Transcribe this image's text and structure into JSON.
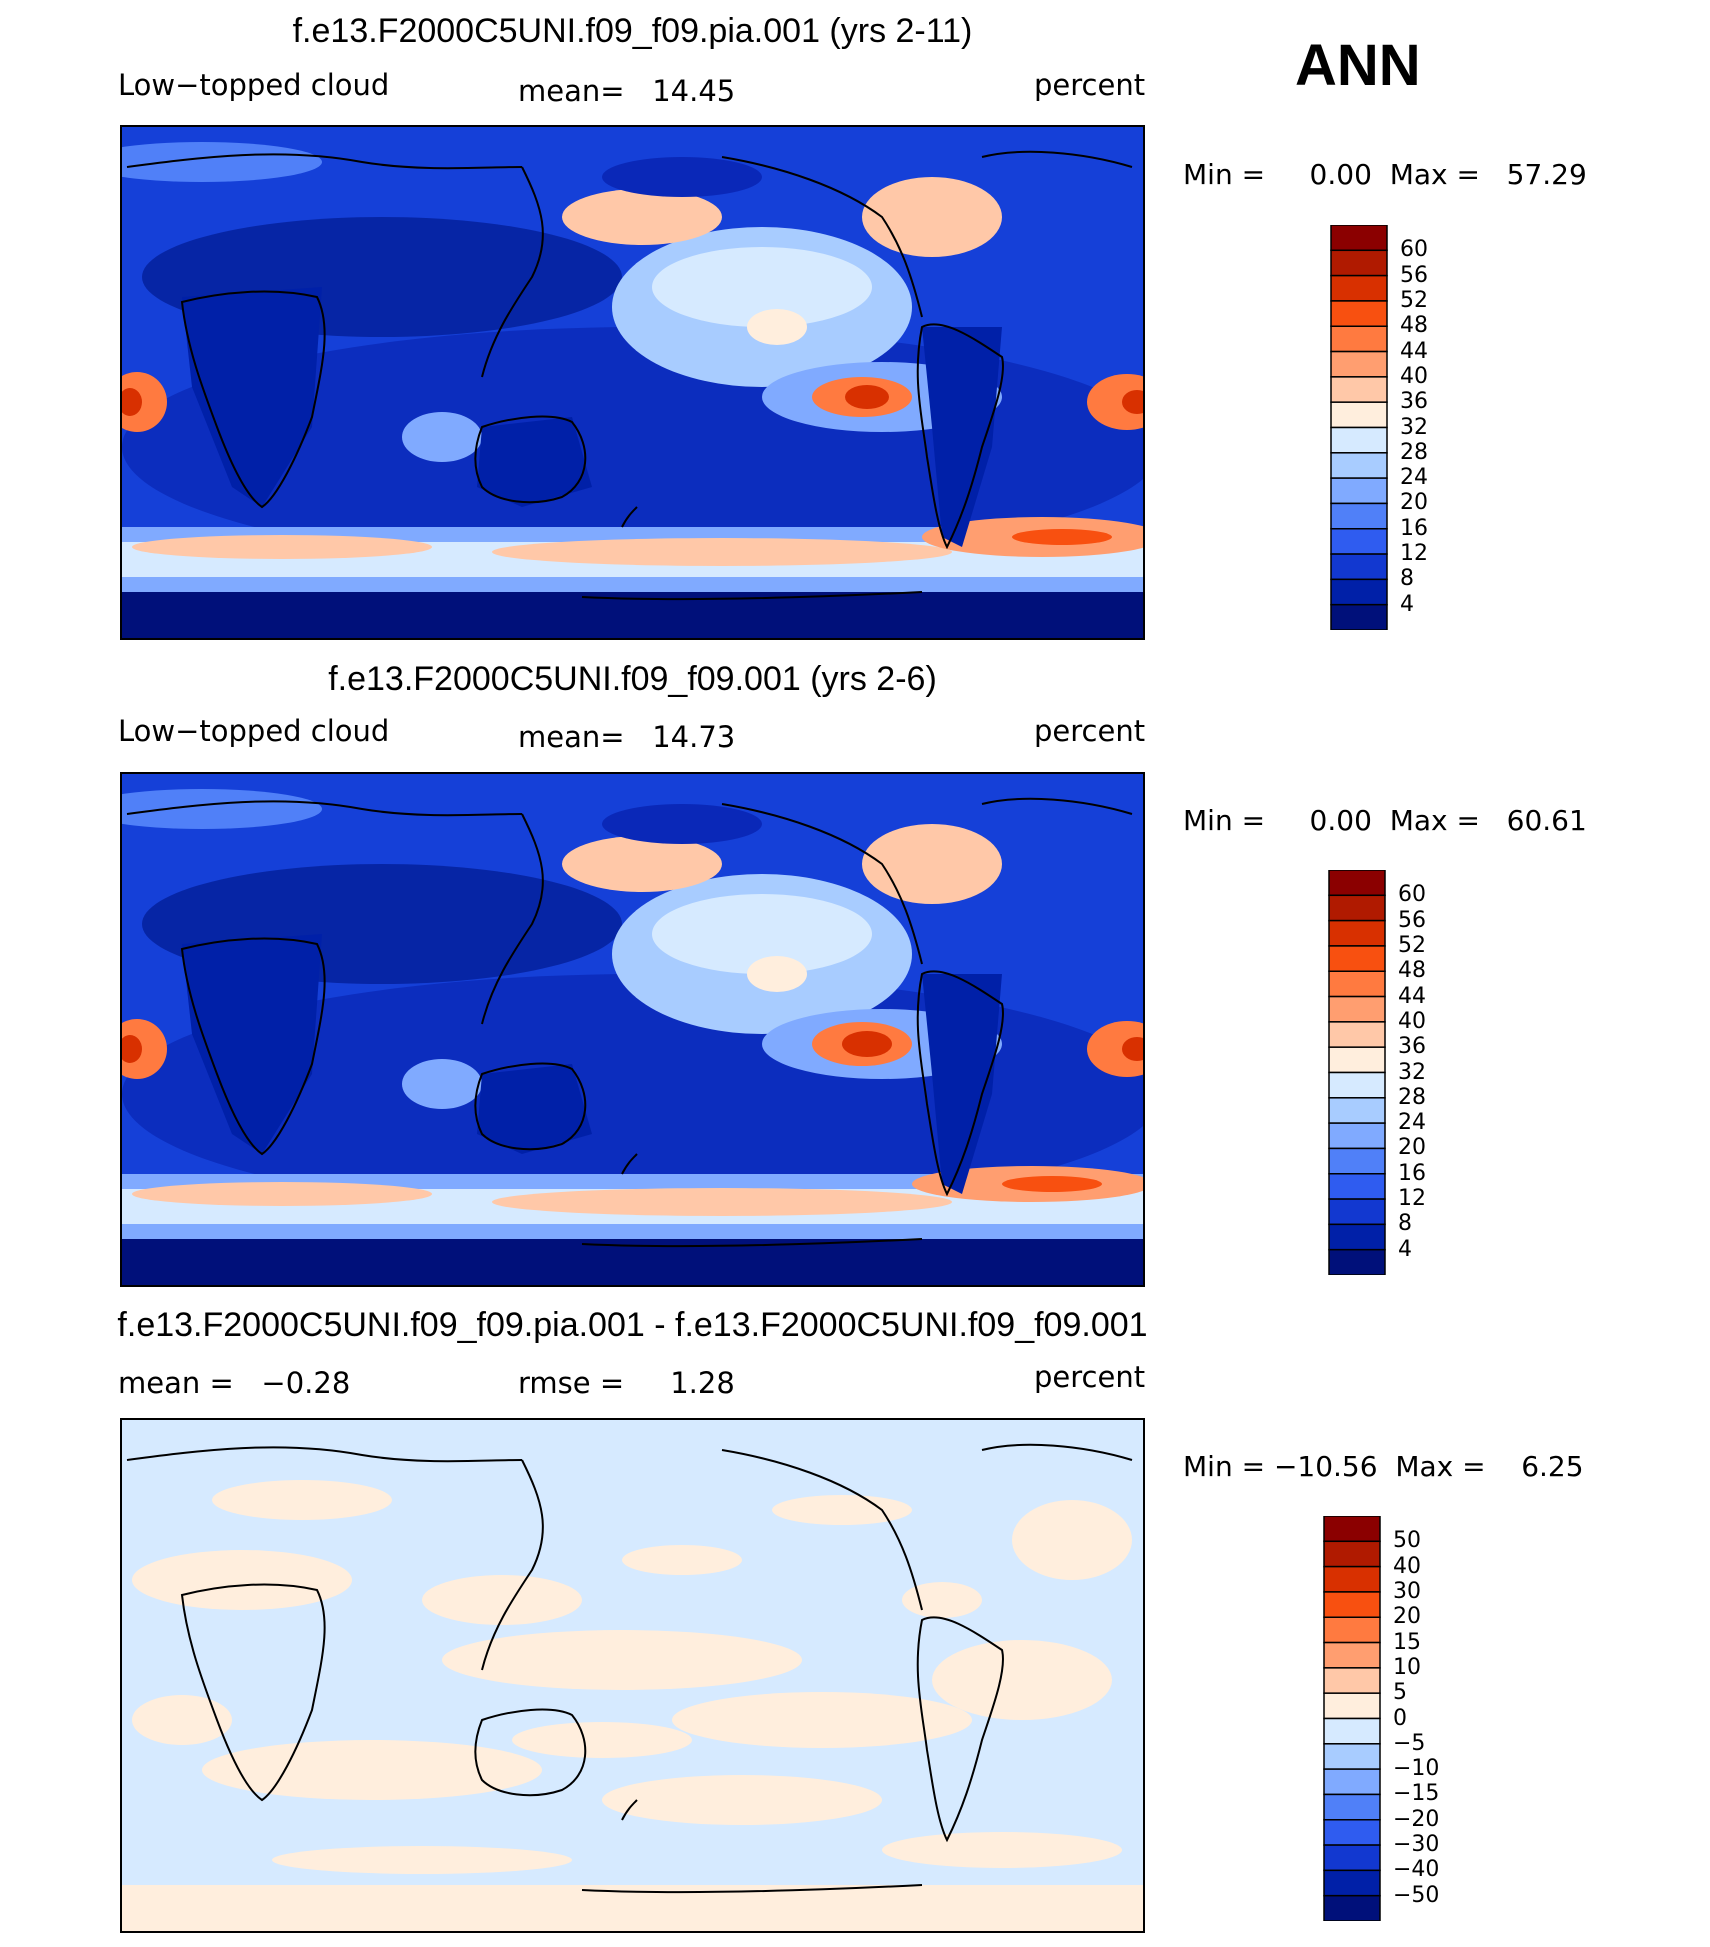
{
  "season": "ANN",
  "panels": [
    {
      "title": "f.e13.F2000C5UNI.f09_f09.pia.001 (yrs 2-11)",
      "left_label": "Low−topped cloud",
      "center_label": "mean=   14.45",
      "right_label": "percent",
      "minmax": "Min =     0.00  Max =   57.29",
      "levels": [
        "60",
        "56",
        "52",
        "48",
        "44",
        "40",
        "36",
        "32",
        "28",
        "24",
        "20",
        "16",
        "12",
        "8",
        "4"
      ],
      "colors": [
        "#8B0000",
        "#B01A00",
        "#D83000",
        "#F85010",
        "#FF7A40",
        "#FF9E70",
        "#FFC8A8",
        "#FFEEDD",
        "#D6EAFF",
        "#A8CCFF",
        "#80AAFF",
        "#5080F8",
        "#2F5CF0",
        "#1238D0",
        "#0020A8",
        "#00107A"
      ]
    },
    {
      "title": "f.e13.F2000C5UNI.f09_f09.001 (yrs 2-6)",
      "left_label": "Low−topped cloud",
      "center_label": "mean=   14.73",
      "right_label": "percent",
      "minmax": "Min =     0.00  Max =   60.61",
      "levels": [
        "60",
        "56",
        "52",
        "48",
        "44",
        "40",
        "36",
        "32",
        "28",
        "24",
        "20",
        "16",
        "12",
        "8",
        "4"
      ],
      "colors": [
        "#8B0000",
        "#B01A00",
        "#D83000",
        "#F85010",
        "#FF7A40",
        "#FF9E70",
        "#FFC8A8",
        "#FFEEDD",
        "#D6EAFF",
        "#A8CCFF",
        "#80AAFF",
        "#5080F8",
        "#2F5CF0",
        "#1238D0",
        "#0020A8",
        "#00107A"
      ]
    },
    {
      "title": "f.e13.F2000C5UNI.f09_f09.pia.001 - f.e13.F2000C5UNI.f09_f09.001",
      "left_label": "mean =   −0.28",
      "center_label": "rmse =     1.28",
      "right_label": "percent",
      "minmax": "Min = −10.56  Max =    6.25",
      "levels": [
        "50",
        "40",
        "30",
        "20",
        "15",
        "10",
        "5",
        "0",
        "−5",
        "−10",
        "−15",
        "−20",
        "−30",
        "−40",
        "−50"
      ],
      "colors": [
        "#8B0000",
        "#B01A00",
        "#D83000",
        "#F85010",
        "#FF7A40",
        "#FF9E70",
        "#FFC8A8",
        "#FFEEDD",
        "#D6EAFF",
        "#A8CCFF",
        "#80AAFF",
        "#5080F8",
        "#2F5CF0",
        "#1238D0",
        "#0020A8",
        "#00107A"
      ]
    }
  ]
}
